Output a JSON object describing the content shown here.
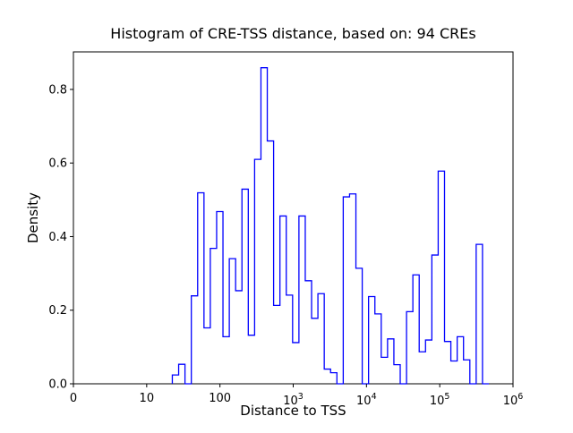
{
  "figure": {
    "background": "#ffffff",
    "axes_color": "#000000"
  },
  "chart_data": {
    "type": "bar",
    "subtype": "step-histogram",
    "title": "Histogram of CRE-TSS distance, based on: 94 CREs",
    "xlabel": "Distance to TSS",
    "ylabel": "Density",
    "n_cres": 94,
    "line_color": "#0000ff",
    "x_scale": "symlog",
    "x_linthresh": 10,
    "xlim": [
      0,
      1000000
    ],
    "ylim": [
      0,
      0.902
    ],
    "grid": false,
    "legend": null,
    "x_ticks": [
      {
        "value": 0,
        "label": "0"
      },
      {
        "value": 10,
        "label": "10"
      },
      {
        "value": 100,
        "label": "100"
      },
      {
        "value": 1000,
        "label": "10^3"
      },
      {
        "value": 10000,
        "label": "10^4"
      },
      {
        "value": 100000,
        "label": "10^5"
      },
      {
        "value": 1000000,
        "label": "10^6"
      }
    ],
    "y_ticks": [
      {
        "value": 0.0,
        "label": "0.0"
      },
      {
        "value": 0.2,
        "label": "0.2"
      },
      {
        "value": 0.4,
        "label": "0.4"
      },
      {
        "value": 0.6,
        "label": "0.6"
      },
      {
        "value": 0.8,
        "label": "0.8"
      }
    ],
    "bins": {
      "comment": "50 log-spaced bins; edge_k(log10 of distance) = first_edge_log10 + k*bin_width_log10; density read from plot",
      "first_edge_log10": 1.35,
      "bin_width_log10": 0.0864,
      "count": 50,
      "densities": [
        0.024,
        0.053,
        0.0,
        0.239,
        0.519,
        0.152,
        0.368,
        0.468,
        0.128,
        0.34,
        0.253,
        0.529,
        0.132,
        0.61,
        0.859,
        0.66,
        0.213,
        0.456,
        0.241,
        0.112,
        0.456,
        0.28,
        0.178,
        0.245,
        0.04,
        0.03,
        0.0,
        0.508,
        0.516,
        0.314,
        0.0,
        0.237,
        0.19,
        0.072,
        0.122,
        0.052,
        0.0,
        0.196,
        0.296,
        0.087,
        0.119,
        0.35,
        0.578,
        0.115,
        0.062,
        0.128,
        0.065,
        0.0,
        0.379,
        0.0
      ]
    }
  }
}
